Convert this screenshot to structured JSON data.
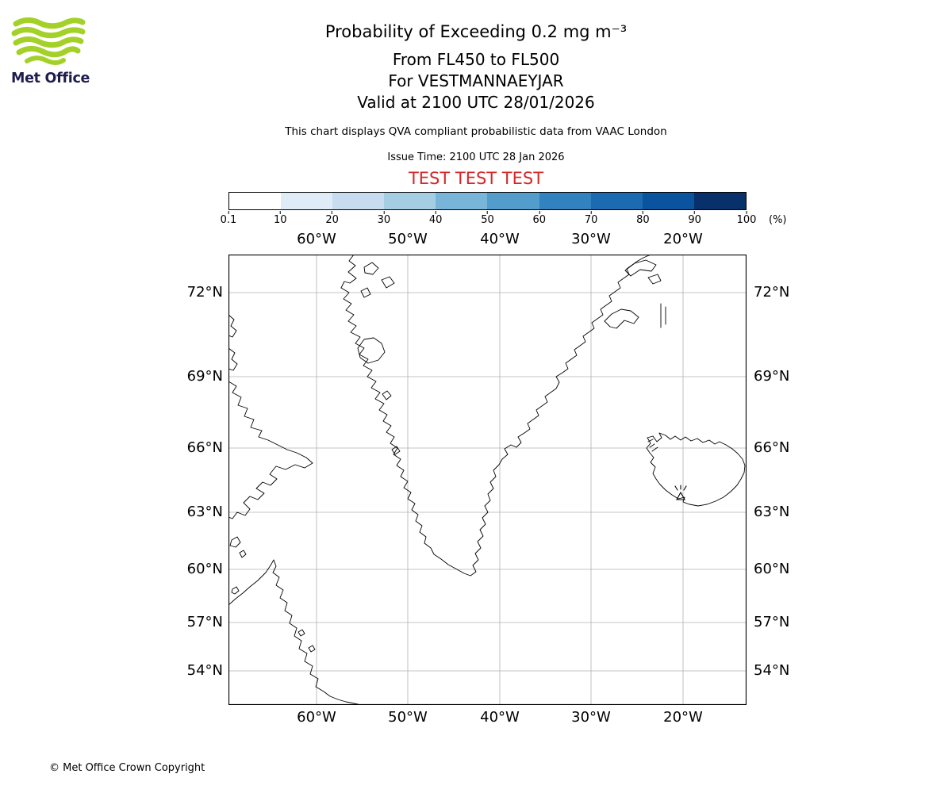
{
  "logo": {
    "name": "Met Office",
    "wave_color": "#a3d128",
    "text_color": "#1d1d4e"
  },
  "header": {
    "title": "Probability of Exceeding 0.2 mg m⁻³",
    "flight_levels": "From FL450 to FL500",
    "site": "For VESTMANNAEYJAR",
    "valid_time": "Valid at 2100 UTC 28/01/2026",
    "description": "This chart displays QVA compliant probabilistic data from VAAC London",
    "issue_time": "Issue Time: 2100 UTC 28 Jan 2026",
    "test_banner": "TEST TEST TEST",
    "test_banner_color": "#d62728"
  },
  "colorbar": {
    "tick_labels": [
      "0.1",
      "10",
      "20",
      "30",
      "40",
      "50",
      "60",
      "70",
      "80",
      "90",
      "100"
    ],
    "unit_label": "(%)",
    "segment_colors": [
      "#ffffff",
      "#dfebf7",
      "#c7dcef",
      "#a6cee3",
      "#79b5d9",
      "#529dcc",
      "#3182be",
      "#1c6bb0",
      "#0a539e",
      "#08306b"
    ]
  },
  "map": {
    "lon_labels": [
      "60°W",
      "50°W",
      "40°W",
      "30°W",
      "20°W"
    ],
    "lat_labels": [
      "72°N",
      "69°N",
      "66°N",
      "63°N",
      "60°N",
      "57°N",
      "54°N"
    ],
    "marker": "volcano-vestmannaeyjar",
    "grid_color": "#b0b0b0"
  },
  "footer": {
    "copyright": "© Met Office Crown Copyright"
  }
}
